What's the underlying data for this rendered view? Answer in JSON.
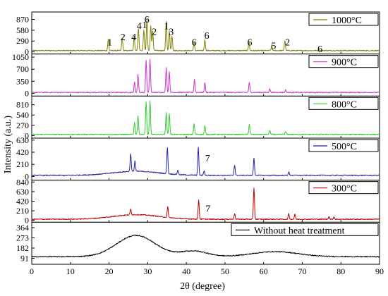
{
  "chart_data": {
    "type": "line",
    "xlabel": "2θ (degree)",
    "ylabel": "Intensity (a.u.)",
    "xlim": [
      0,
      90
    ],
    "xticks": [
      0,
      10,
      20,
      30,
      40,
      50,
      60,
      70,
      80,
      90
    ],
    "legend_placement": "top-right of each panel",
    "grid": false,
    "panels": [
      {
        "series_name": "1000°C",
        "color": "#808000",
        "ylim": [
          -20,
          1030
        ],
        "yticks": [
          0,
          290,
          580,
          870
        ],
        "baseline": 35,
        "peaks": [
          [
            19.8,
            330
          ],
          [
            23.4,
            380
          ],
          [
            26.5,
            420
          ],
          [
            27.6,
            620
          ],
          [
            29.0,
            600
          ],
          [
            29.8,
            890
          ],
          [
            30.8,
            700
          ],
          [
            31.3,
            560
          ],
          [
            34.8,
            820
          ],
          [
            35.6,
            560
          ],
          [
            36.3,
            430
          ],
          [
            42.0,
            260
          ],
          [
            44.8,
            330
          ],
          [
            56.2,
            260
          ],
          [
            62.1,
            170
          ],
          [
            65.5,
            300
          ],
          [
            74.3,
            60
          ]
        ],
        "annotations": [
          {
            "text": "1",
            "x": 20.2
          },
          {
            "text": "2",
            "x": 23.6
          },
          {
            "text": "4",
            "x": 26.4
          },
          {
            "text": "4",
            "x": 27.8
          },
          {
            "text": "6",
            "x": 29.8
          },
          {
            "text": "1",
            "x": 29.2
          },
          {
            "text": "2",
            "x": 31.7
          },
          {
            "text": "1",
            "x": 34.9
          },
          {
            "text": "3",
            "x": 36.1
          },
          {
            "text": "6",
            "x": 42.0
          },
          {
            "text": "6",
            "x": 45.3
          },
          {
            "text": "6",
            "x": 56.4
          },
          {
            "text": "5",
            "x": 62.6
          },
          {
            "text": "2",
            "x": 66.2
          },
          {
            "text": "6",
            "x": 74.6
          }
        ]
      },
      {
        "series_name": "900°C",
        "color": "#cc33cc",
        "ylim": [
          -40,
          1100
        ],
        "yticks": [
          0,
          350,
          700,
          1050
        ],
        "baseline": 25,
        "peaks": [
          [
            26.6,
            330
          ],
          [
            27.5,
            560
          ],
          [
            29.6,
            950
          ],
          [
            30.6,
            980
          ],
          [
            34.8,
            740
          ],
          [
            35.6,
            620
          ],
          [
            42.1,
            400
          ],
          [
            44.8,
            320
          ],
          [
            56.3,
            320
          ],
          [
            61.6,
            130
          ],
          [
            65.7,
            100
          ]
        ],
        "annotations": []
      },
      {
        "series_name": "800°C",
        "color": "#33cc33",
        "ylim": [
          -30,
          1000
        ],
        "yticks": [
          0,
          270,
          540,
          810
        ],
        "baseline": 30,
        "peaks": [
          [
            26.6,
            350
          ],
          [
            27.5,
            520
          ],
          [
            29.6,
            900
          ],
          [
            30.6,
            900
          ],
          [
            34.8,
            600
          ],
          [
            35.6,
            570
          ],
          [
            42.0,
            310
          ],
          [
            44.8,
            260
          ],
          [
            56.3,
            300
          ],
          [
            61.6,
            140
          ],
          [
            65.7,
            110
          ]
        ],
        "annotations": []
      },
      {
        "series_name": "500°C",
        "color": "#2222aa",
        "ylim": [
          -40,
          640
        ],
        "yticks": [
          0,
          210,
          420,
          630
        ],
        "baseline": 20,
        "hump": {
          "center": 27,
          "height": 70,
          "width": 6
        },
        "peaks": [
          [
            25.6,
            330
          ],
          [
            26.7,
            200
          ],
          [
            35.1,
            480
          ],
          [
            37.8,
            100
          ],
          [
            43.1,
            500
          ],
          [
            44.6,
            100
          ],
          [
            52.5,
            200
          ],
          [
            57.5,
            320
          ],
          [
            66.5,
            80
          ]
        ],
        "annotations": [
          {
            "text": "7",
            "x": 45.5
          }
        ]
      },
      {
        "series_name": "300°C",
        "color": "#c00000",
        "ylim": [
          -10,
          850
        ],
        "yticks": [
          0,
          210,
          420,
          630,
          840
        ],
        "baseline": 25,
        "hump": {
          "center": 27,
          "height": 100,
          "width": 6
        },
        "peaks": [
          [
            25.6,
            150
          ],
          [
            35.2,
            260
          ],
          [
            43.2,
            450
          ],
          [
            52.5,
            150
          ],
          [
            57.5,
            720
          ],
          [
            66.5,
            150
          ],
          [
            68.1,
            140
          ],
          [
            76.9,
            90
          ],
          [
            78.2,
            80
          ]
        ],
        "annotations": [
          {
            "text": "7",
            "x": 45.6
          }
        ]
      },
      {
        "series_name": "Without heat treatment",
        "color": "#000000",
        "ylim": [
          50,
          400
        ],
        "yticks": [
          91,
          182,
          273,
          364
        ],
        "baseline": 105,
        "humps": [
          {
            "center": 27,
            "height": 190,
            "width": 5
          },
          {
            "center": 42,
            "height": 50,
            "width": 3.5
          },
          {
            "center": 63,
            "height": 45,
            "width": 6
          }
        ],
        "annotations": []
      }
    ]
  }
}
